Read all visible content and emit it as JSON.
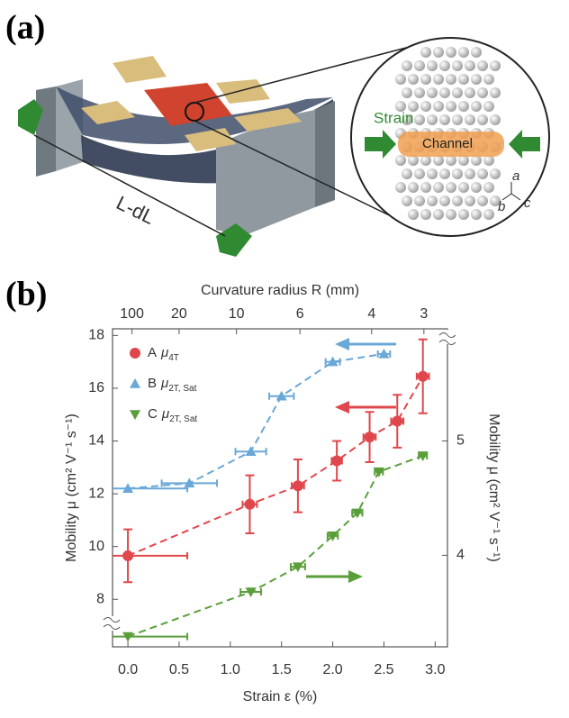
{
  "panel_a": {
    "panel_label": "(a)",
    "dimension": "L-dL",
    "strain": "Strain",
    "channel": "Channel",
    "axis_a": "a",
    "axis_b": "b",
    "axis_c": "c"
  },
  "chart_data": {
    "type": "scatter",
    "panel_label": "(b)",
    "xlabel": "Strain ε (%)",
    "ylabel": "Mobility μ (cm² V⁻¹ s⁻¹)",
    "y2label": "Mobility μ (cm² V⁻¹ s⁻¹)",
    "x2label": "Curvature radius R (mm)",
    "xlim": [
      -0.15,
      3.12
    ],
    "xticks": [
      {
        "value": 0,
        "label": "0.0"
      },
      {
        "value": 0.5,
        "label": "0.5"
      },
      {
        "value": 1,
        "label": "1.0"
      },
      {
        "value": 1.5,
        "label": "1.5"
      },
      {
        "value": 2,
        "label": "2.0"
      },
      {
        "value": 2.5,
        "label": "2.5"
      },
      {
        "value": 3,
        "label": "3.0"
      }
    ],
    "x2ticks": [
      {
        "value": 0.04,
        "label": "100"
      },
      {
        "value": 0.5,
        "label": "20"
      },
      {
        "value": 1.06,
        "label": "10"
      },
      {
        "value": 1.68,
        "label": "6"
      },
      {
        "value": 2.38,
        "label": "4"
      },
      {
        "value": 2.89,
        "label": "3"
      }
    ],
    "ylim": [
      6.2,
      18.25
    ],
    "yticks": [
      8,
      10,
      12,
      14,
      16,
      18
    ],
    "y2lim": [
      3.2,
      5.98
    ],
    "y2ticks": [
      4,
      5
    ],
    "series": [
      {
        "name": "A",
        "symbol": "μ",
        "sub": "4T",
        "color": "#e0474c",
        "marker": "circle",
        "x": [
          0,
          1.19,
          1.66,
          2.04,
          2.36,
          2.63,
          2.88
        ],
        "values": [
          9.65,
          11.6,
          12.3,
          13.25,
          14.15,
          14.75,
          16.45
        ],
        "yerr": [
          1.0,
          1.1,
          1.0,
          0.75,
          0.95,
          1.0,
          1.4
        ],
        "xerr": [
          0.58,
          0.07,
          0.06,
          0.05,
          0.06,
          0.06,
          0.06
        ]
      },
      {
        "name": "B",
        "symbol": "μ",
        "sub": "2T, Sat",
        "color": "#6aa8d8",
        "marker": "triangle-up",
        "x": [
          0,
          0.6,
          1.2,
          1.5,
          2.0,
          2.5
        ],
        "values": [
          12.2,
          12.4,
          13.6,
          15.7,
          17.0,
          17.3
        ],
        "xerr": [
          0.58,
          0.27,
          0.15,
          0.12,
          0.07,
          0.06
        ]
      },
      {
        "name": "C",
        "symbol": "μ",
        "sub": "2T, Sat",
        "color": "#5a9e3a",
        "marker": "triangle-down",
        "axis": "y2",
        "x": [
          0,
          1.2,
          1.66,
          2.0,
          2.24,
          2.45,
          2.88
        ],
        "values": [
          3.29,
          3.68,
          3.9,
          4.17,
          4.37,
          4.73,
          4.87
        ],
        "xerr": [
          0.58,
          0.1,
          0.07,
          0.05,
          0.05,
          0.04,
          0.04
        ]
      }
    ]
  }
}
